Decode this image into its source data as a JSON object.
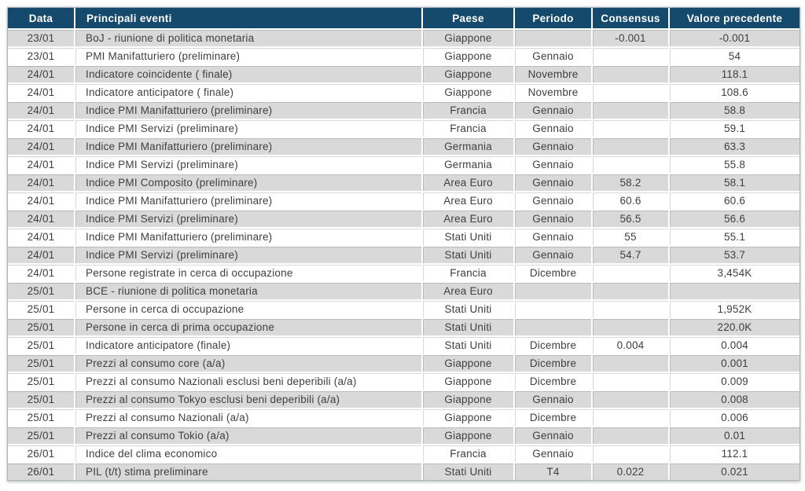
{
  "colors": {
    "header_bg": "#154A6C",
    "row_alt_bg": "#D9D9D9",
    "row_bg": "#FFFFFF",
    "text": "#3F3F41",
    "header_text": "#FFFFFF",
    "outer_border": "#ADB3B7"
  },
  "table": {
    "columns": [
      {
        "key": "data",
        "label": "Data"
      },
      {
        "key": "principali-eventi",
        "label": "Principali eventi"
      },
      {
        "key": "paese",
        "label": "Paese"
      },
      {
        "key": "periodo",
        "label": "Periodo"
      },
      {
        "key": "consensus",
        "label": "Consensus"
      },
      {
        "key": "valore-precedente",
        "label": "Valore precedente"
      }
    ],
    "rows": [
      [
        "23/01",
        "BoJ - riunione di politica monetaria",
        "Giappone",
        "",
        "-0.001",
        "-0.001"
      ],
      [
        "23/01",
        "PMI Manifatturiero (preliminare)",
        "Giappone",
        "Gennaio",
        "",
        "54"
      ],
      [
        "24/01",
        "Indicatore coincidente ( finale)",
        "Giappone",
        "Novembre",
        "",
        "118.1"
      ],
      [
        "24/01",
        "Indicatore anticipatore ( finale)",
        "Giappone",
        "Novembre",
        "",
        "108.6"
      ],
      [
        "24/01",
        "Indice PMI Manifatturiero (preliminare)",
        "Francia",
        "Gennaio",
        "",
        "58.8"
      ],
      [
        "24/01",
        "Indice PMI Servizi (preliminare)",
        "Francia",
        "Gennaio",
        "",
        "59.1"
      ],
      [
        "24/01",
        "Indice PMI Manifatturiero (preliminare)",
        "Germania",
        "Gennaio",
        "",
        "63.3"
      ],
      [
        "24/01",
        "Indice PMI Servizi (preliminare)",
        "Germania",
        "Gennaio",
        "",
        "55.8"
      ],
      [
        "24/01",
        "Indice PMI Composito (preliminare)",
        "Area Euro",
        "Gennaio",
        "58.2",
        "58.1"
      ],
      [
        "24/01",
        "Indice PMI Manifatturiero (preliminare)",
        "Area Euro",
        "Gennaio",
        "60.6",
        "60.6"
      ],
      [
        "24/01",
        "Indice PMI Servizi (preliminare)",
        "Area Euro",
        "Gennaio",
        "56.5",
        "56.6"
      ],
      [
        "24/01",
        "Indice PMI Manifatturiero (preliminare)",
        "Stati Uniti",
        "Gennaio",
        "55",
        "55.1"
      ],
      [
        "24/01",
        "Indice PMI Servizi (preliminare)",
        "Stati Uniti",
        "Gennaio",
        "54.7",
        "53.7"
      ],
      [
        "24/01",
        "Persone registrate in cerca di occupazione",
        "Francia",
        "Dicembre",
        "",
        "3,454K"
      ],
      [
        "25/01",
        "BCE - riunione di politica monetaria",
        "Area Euro",
        "",
        "",
        ""
      ],
      [
        "25/01",
        "Persone in cerca di occupazione",
        "Stati Uniti",
        "",
        "",
        "1,952K"
      ],
      [
        "25/01",
        "Persone in cerca di prima occupazione",
        "Stati Uniti",
        "",
        "",
        "220.0K"
      ],
      [
        "25/01",
        "Indicatore anticipatore (finale)",
        "Stati Uniti",
        "Dicembre",
        "0.004",
        "0.004"
      ],
      [
        "25/01",
        "Prezzi al consumo core (a/a)",
        "Giappone",
        "Dicembre",
        "",
        "0.001"
      ],
      [
        "25/01",
        "Prezzi al consumo Nazionali esclusi beni deperibili (a/a)",
        "Giappone",
        "Dicembre",
        "",
        "0.009"
      ],
      [
        "25/01",
        "Prezzi al consumo Tokyo esclusi beni deperibili (a/a)",
        "Giappone",
        "Gennaio",
        "",
        "0.008"
      ],
      [
        "25/01",
        "Prezzi al consumo Nazionali (a/a)",
        "Giappone",
        "Dicembre",
        "",
        "0.006"
      ],
      [
        "25/01",
        "Prezzi al consumo Tokio (a/a)",
        "Giappone",
        "Gennaio",
        "",
        "0.01"
      ],
      [
        "26/01",
        "Indice del clima economico",
        "Francia",
        "Gennaio",
        "",
        "112.1"
      ],
      [
        "26/01",
        "PIL (t/t) stima preliminare",
        "Stati Uniti",
        "T4",
        "0.022",
        "0.021"
      ]
    ]
  }
}
